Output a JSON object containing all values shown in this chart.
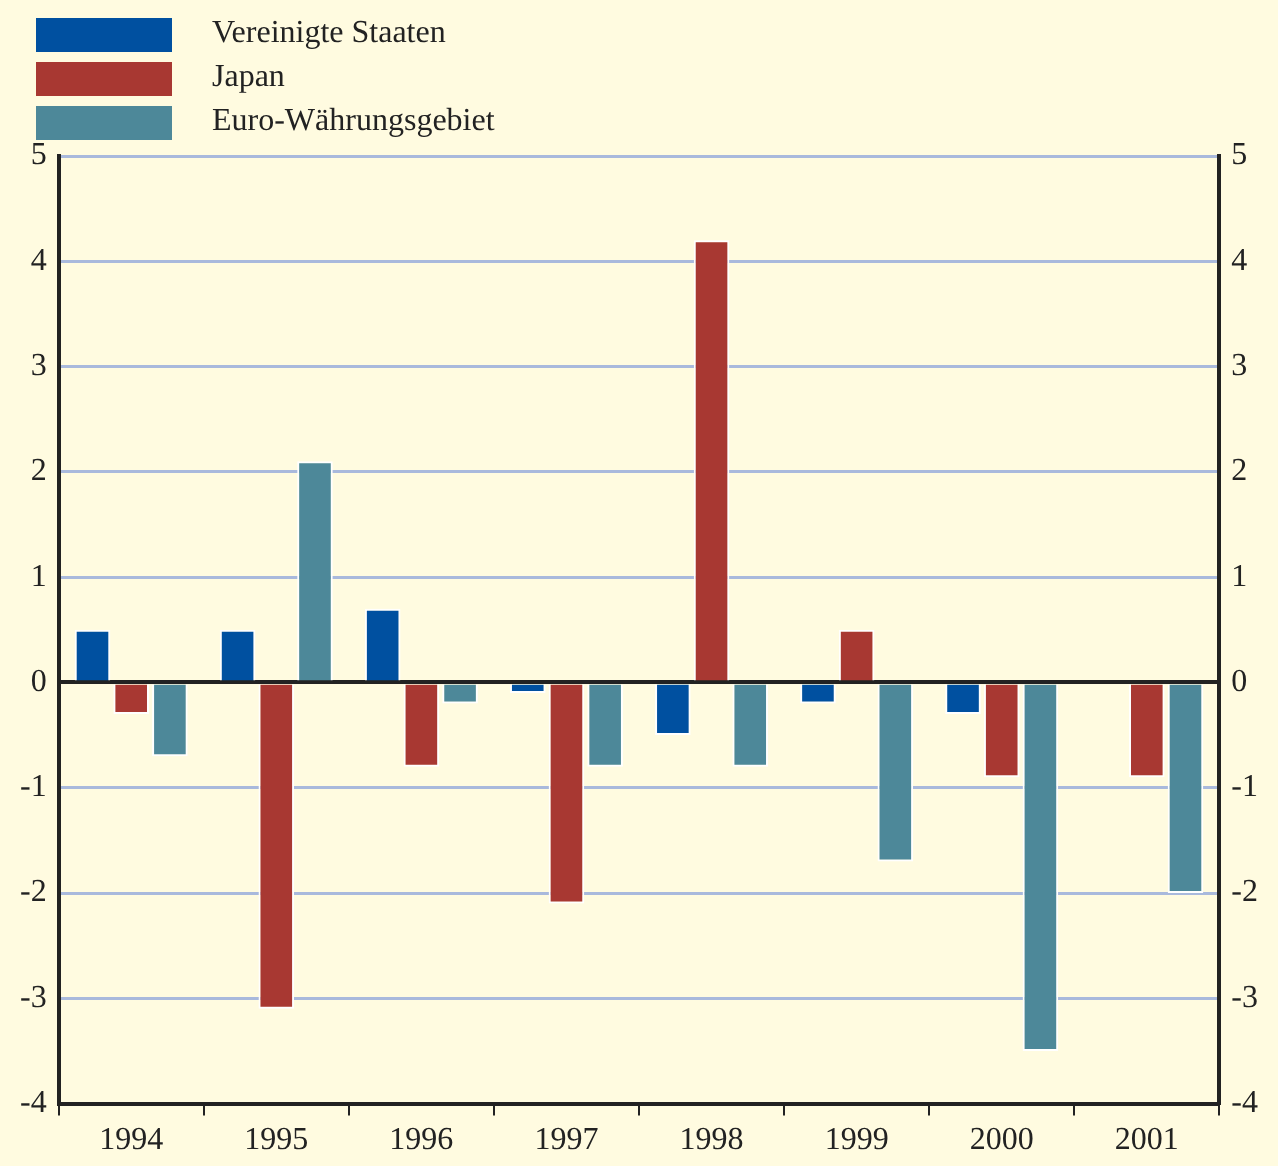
{
  "chart_data": {
    "type": "bar",
    "categories": [
      "1994",
      "1995",
      "1996",
      "1997",
      "1998",
      "1999",
      "2000",
      "2001"
    ],
    "series": [
      {
        "name": "Vereinigte Staaten",
        "color": "#0050a0",
        "values": [
          0.5,
          0.5,
          0.7,
          -0.1,
          -0.5,
          -0.2,
          -0.3,
          0.0
        ]
      },
      {
        "name": "Japan",
        "color": "#a83832",
        "values": [
          -0.3,
          -3.1,
          -0.8,
          -2.1,
          4.2,
          0.5,
          -0.9,
          -0.9
        ]
      },
      {
        "name": "Euro-Währungsgebiet",
        "color": "#4d8899",
        "values": [
          -0.7,
          2.1,
          -0.2,
          -0.8,
          -0.8,
          -1.7,
          -3.5,
          -2.0
        ]
      }
    ],
    "ylim": [
      -4,
      5
    ],
    "yticks": [
      -4,
      -3,
      -2,
      -1,
      0,
      1,
      2,
      3,
      4,
      5
    ],
    "y2lim": [
      -4,
      5
    ],
    "y2ticks": [
      -4,
      -3,
      -2,
      -1,
      0,
      1,
      2,
      3,
      4,
      5
    ],
    "grid": "y",
    "legend": "top left"
  }
}
